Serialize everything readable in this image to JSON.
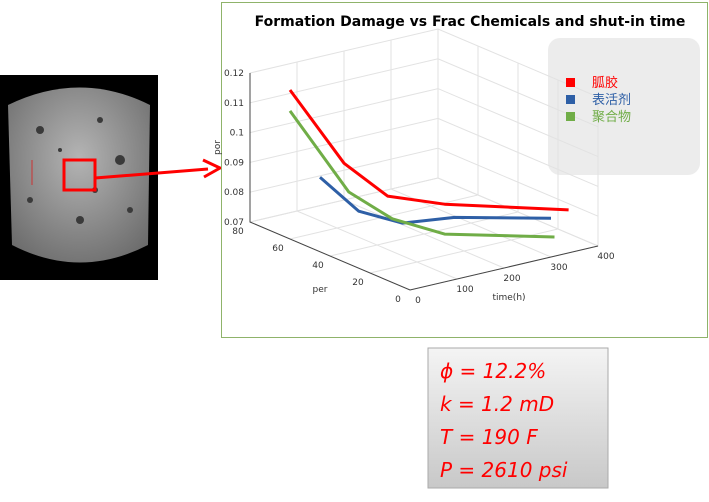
{
  "chart_data": {
    "type": "line3d",
    "title": "Formation Damage vs Frac Chemicals and shut-in time",
    "xlabel": "time(h)",
    "ylabel": "per",
    "zlabel": "por",
    "xlim": [
      0,
      400
    ],
    "xticks": [
      0,
      100,
      200,
      300,
      400
    ],
    "ylim": [
      0,
      80
    ],
    "yticks": [
      0,
      20,
      40,
      60,
      80
    ],
    "zlim": [
      0.07,
      0.12
    ],
    "zticks": [
      0.07,
      0.08,
      0.09,
      0.1,
      0.11,
      0.12
    ],
    "grid": true,
    "legend": "upper right",
    "series": [
      {
        "name": "胍胶",
        "color": "#ff0000",
        "x": [
          0,
          30,
          80,
          180,
          380
        ],
        "y": [
          60,
          40,
          30,
          25,
          10
        ],
        "z": [
          0.12,
          0.1,
          0.09,
          0.085,
          0.08
        ]
      },
      {
        "name": "表活剂",
        "color": "#2e5fa6",
        "x": [
          0,
          40,
          90,
          180,
          300
        ],
        "y": [
          45,
          35,
          25,
          20,
          0
        ],
        "z": [
          0.095,
          0.085,
          0.082,
          0.082,
          0.083
        ]
      },
      {
        "name": "聚合物",
        "color": "#70ad47",
        "x": [
          0,
          40,
          90,
          180,
          350
        ],
        "y": [
          60,
          40,
          30,
          25,
          10
        ],
        "z": [
          0.113,
          0.09,
          0.082,
          0.075,
          0.072
        ]
      }
    ]
  },
  "properties": [
    "ϕ = 12.2%",
    "k = 1.2 mD",
    "T = 190 F",
    "P = 2610 psi"
  ]
}
